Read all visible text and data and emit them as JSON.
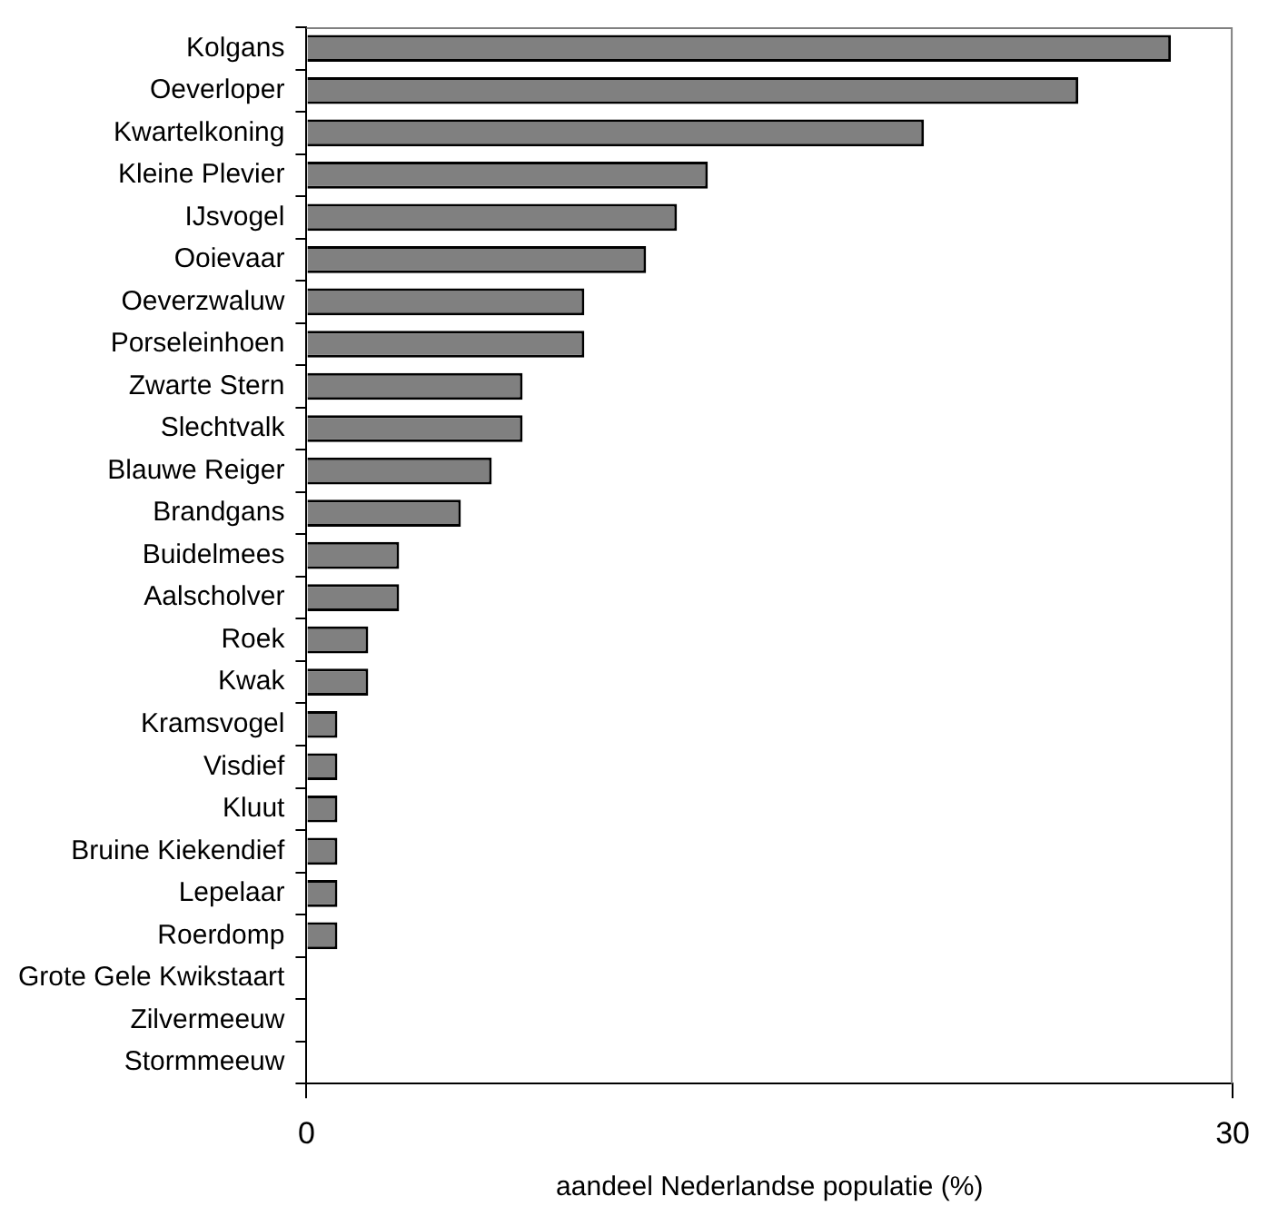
{
  "chart_data": {
    "type": "bar",
    "orientation": "horizontal",
    "xlabel": "aandeel Nederlandse populatie (%)",
    "categories": [
      "Kolgans",
      "Oeverloper",
      "Kwartelkoning",
      "Kleine Plevier",
      "IJsvogel",
      "Ooievaar",
      "Oeverzwaluw",
      "Porseleinhoen",
      "Zwarte Stern",
      "Slechtvalk",
      "Blauwe Reiger",
      "Brandgans",
      "Buidelmees",
      "Aalscholver",
      "Roek",
      "Kwak",
      "Kramsvogel",
      "Visdief",
      "Kluut",
      "Bruine Kiekendief",
      "Lepelaar",
      "Roerdomp",
      "Grote Gele Kwikstaart",
      "Zilvermeeuw",
      "Stormmeeuw"
    ],
    "values": [
      28,
      25,
      20,
      13,
      12,
      11,
      9,
      9,
      7,
      7,
      6,
      5,
      3,
      3,
      2,
      2,
      1,
      1,
      1,
      1,
      1,
      1,
      0,
      0,
      0
    ],
    "color": "#808080",
    "xlim": [
      0,
      30
    ],
    "xticks": [
      0,
      30
    ],
    "grid": false,
    "legend": false
  }
}
